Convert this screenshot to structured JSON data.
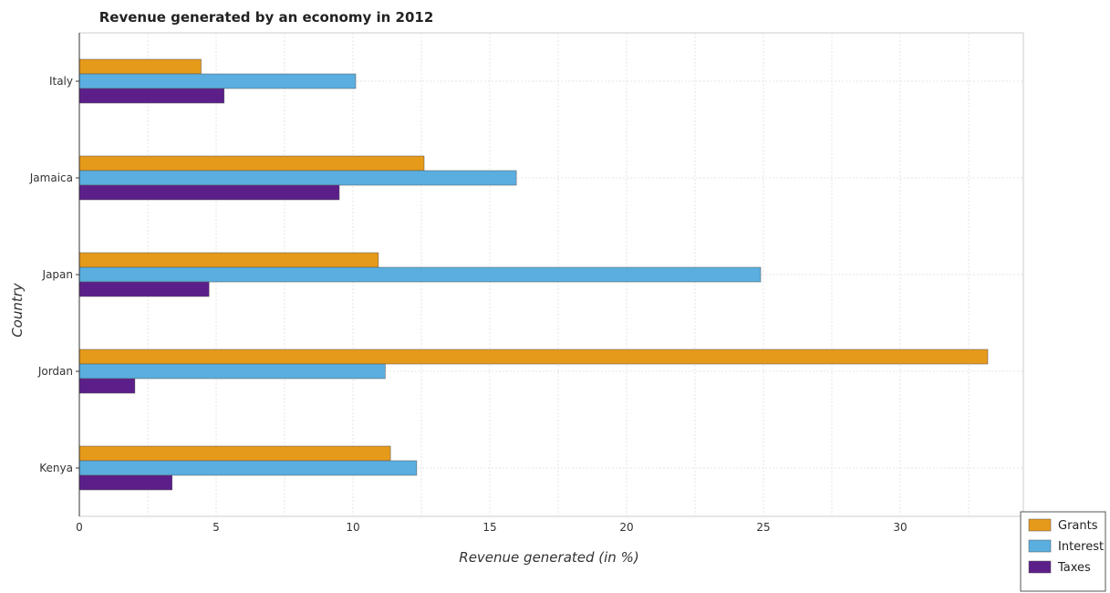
{
  "chart_data": {
    "type": "bar",
    "orientation": "horizontal",
    "title": "Revenue generated by an economy in 2012",
    "xlabel": "Revenue generated (in %)",
    "ylabel": "Country",
    "categories": [
      "Italy",
      "Jamaica",
      "Japan",
      "Jordan",
      "Kenya"
    ],
    "series": [
      {
        "name": "Grants",
        "color": "#e69a1a",
        "values": [
          4.45,
          12.6,
          10.93,
          33.2,
          11.37
        ]
      },
      {
        "name": "Interest",
        "color": "#5aaee0",
        "values": [
          10.1,
          15.97,
          24.9,
          11.18,
          12.33
        ]
      },
      {
        "name": "Taxes",
        "color": "#5c1f8a",
        "values": [
          5.29,
          9.5,
          4.74,
          2.03,
          3.39
        ]
      }
    ],
    "xlim": [
      0,
      34.5
    ],
    "xticks": [
      0,
      5,
      10,
      15,
      20,
      25,
      30
    ],
    "xtick_labels": [
      "0",
      "5",
      "10",
      "15",
      "20",
      "25",
      "30"
    ],
    "grid": true,
    "legend_position": "bottom-right"
  }
}
